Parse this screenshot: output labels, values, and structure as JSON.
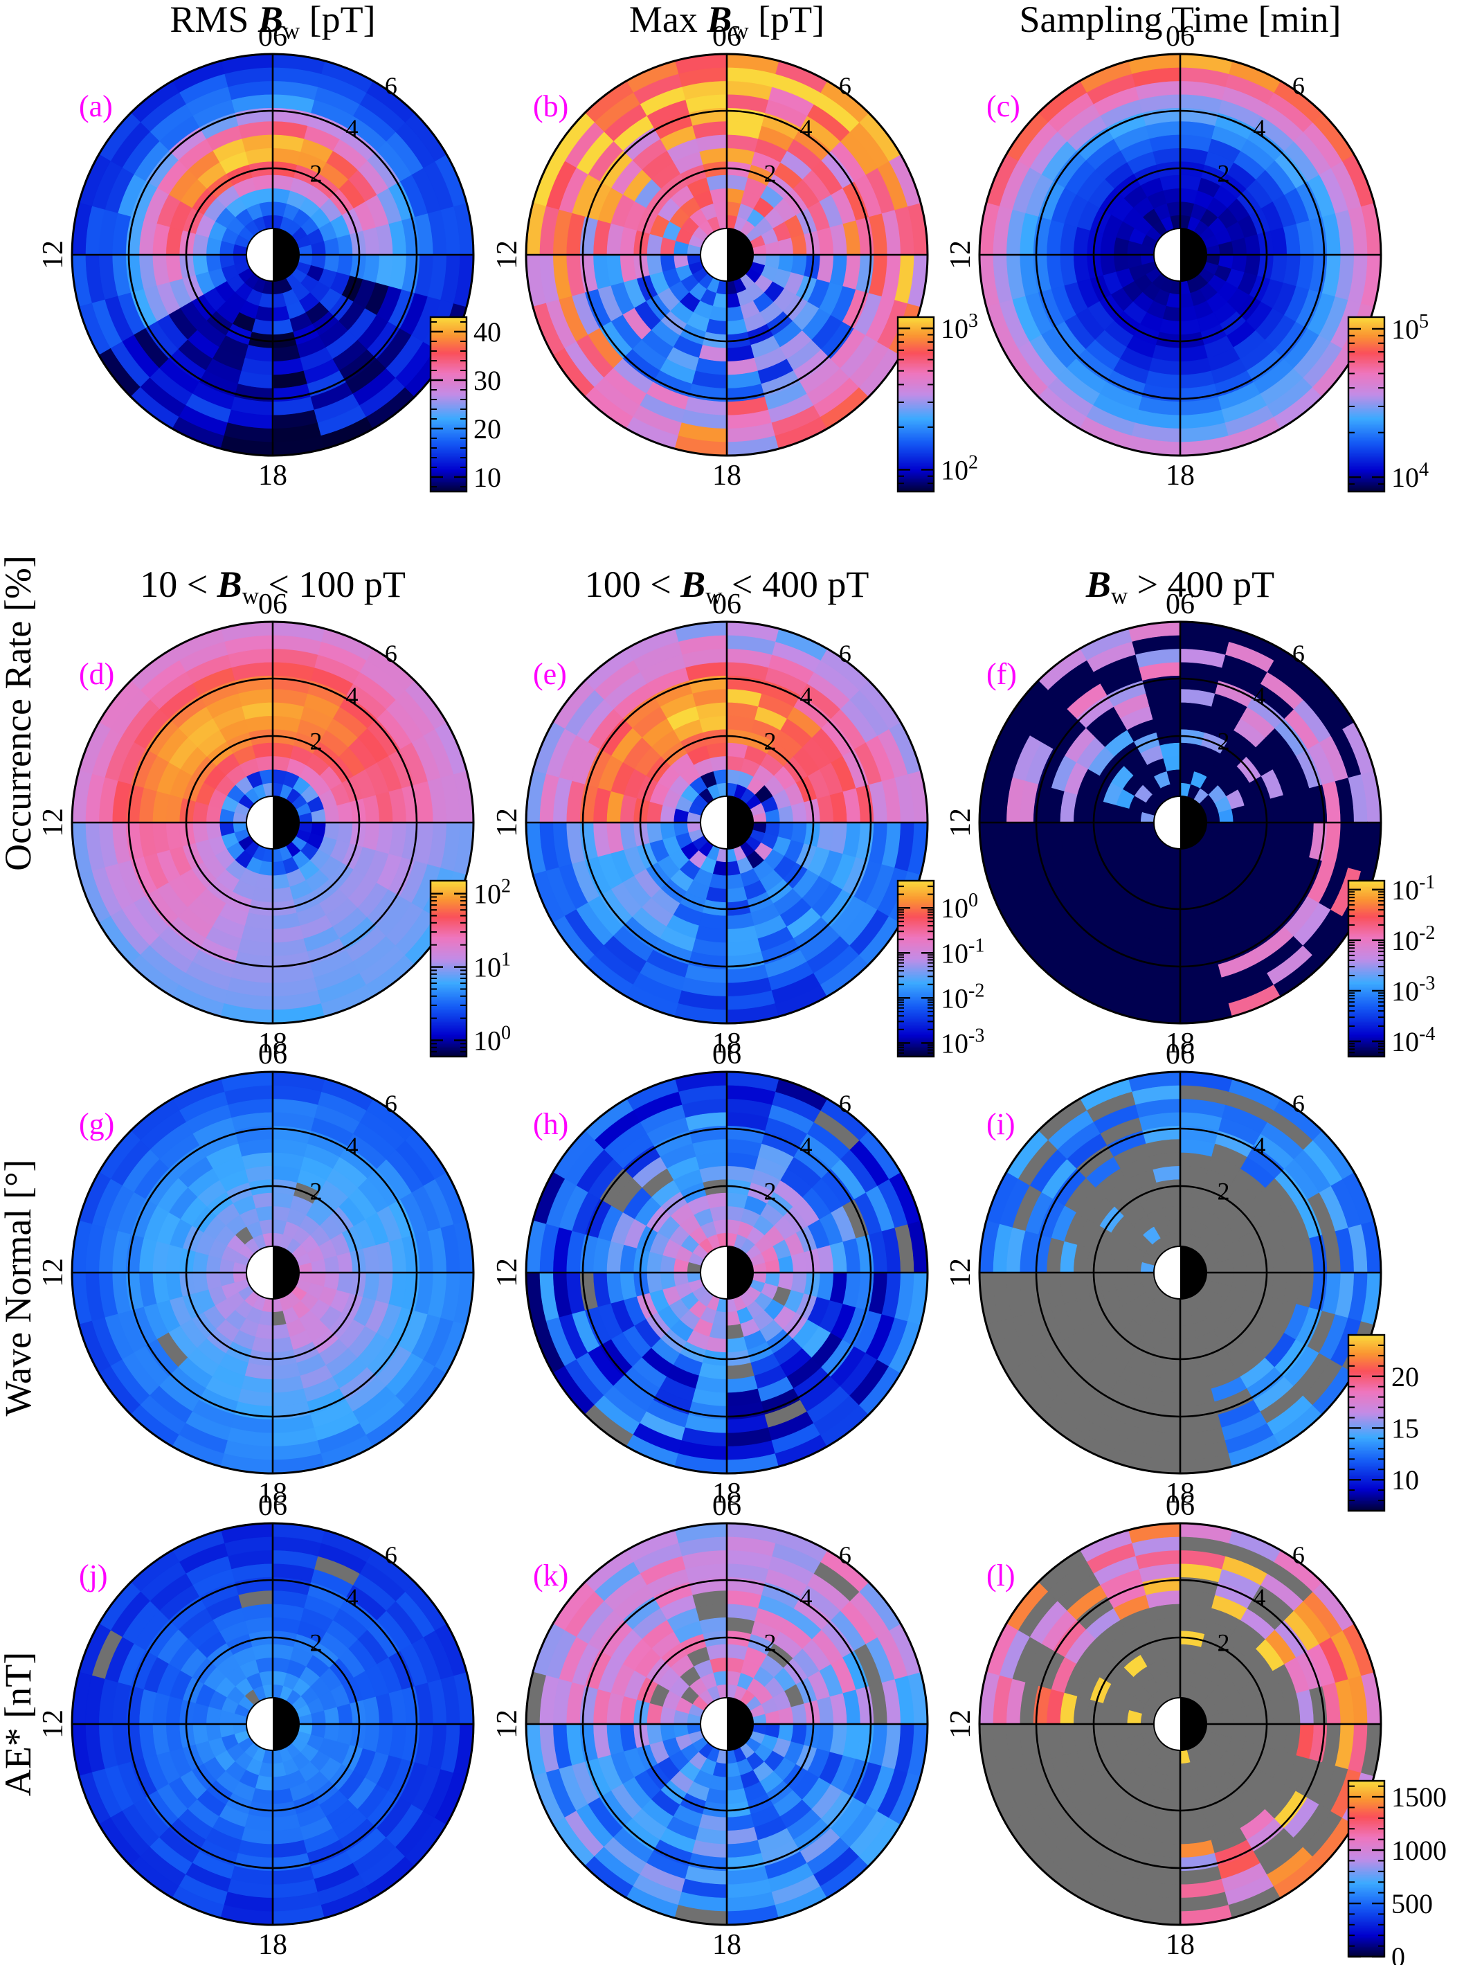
{
  "figure": {
    "column_titles": [
      {
        "main": "RMS ",
        "bold": "B",
        "sub": "w",
        "rest": " [pT]"
      },
      {
        "main": "Max ",
        "bold": "B",
        "sub": "w",
        "rest": " [pT]"
      },
      {
        "main": "Sampling Time [min]",
        "bold": "",
        "sub": "",
        "rest": ""
      }
    ],
    "occurrence_titles": [
      {
        "main": "10 < ",
        "bold": "B",
        "sub": "w",
        "rest": " < 100 pT"
      },
      {
        "main": "100 < ",
        "bold": "B",
        "sub": "w",
        "rest": " < 400 pT"
      },
      {
        "main": "",
        "bold": "B",
        "sub": "w",
        "rest": " > 400 pT"
      }
    ],
    "row_labels": [
      "Occurrence Rate [%]",
      "Wave Normal [°]",
      "AE* [nT]"
    ],
    "mlt_labels": {
      "top": "06",
      "left": "12",
      "bottom": "18"
    },
    "l_labels": [
      "2",
      "4",
      "6"
    ],
    "panel_labels": [
      "(a)",
      "(b)",
      "(c)",
      "(d)",
      "(e)",
      "(f)",
      "(g)",
      "(h)",
      "(i)",
      "(j)",
      "(k)",
      "(l)"
    ],
    "colors": {
      "panel_label": "#ff00ff",
      "gray": "#707070",
      "frame": "#000000"
    }
  },
  "chart_data": [
    {
      "type": "heatmap",
      "panel": "(a)",
      "title": "RMS Bw [pT]",
      "quantity": "rms",
      "cbar": {
        "ticks": [
          "10",
          "20",
          "30",
          "40"
        ],
        "tick_values": [
          10,
          20,
          30,
          40
        ],
        "scale": "linear",
        "range": [
          7,
          43
        ]
      }
    },
    {
      "type": "heatmap",
      "panel": "(b)",
      "title": "Max Bw [pT]",
      "quantity": "max",
      "cbar": {
        "ticks": [
          "10^2",
          "10^3"
        ],
        "tick_values": [
          100,
          1000
        ],
        "scale": "log",
        "range": [
          70,
          1200
        ]
      }
    },
    {
      "type": "heatmap",
      "panel": "(c)",
      "title": "Sampling Time [min]",
      "quantity": "time",
      "cbar": {
        "ticks": [
          "10^4",
          "10^5"
        ],
        "tick_values": [
          10000,
          100000
        ],
        "scale": "log",
        "range": [
          8000,
          120000
        ]
      }
    },
    {
      "type": "heatmap",
      "panel": "(d)",
      "title": "10 < Bw < 100 pT",
      "quantity": "occ_low",
      "cbar": {
        "ticks": [
          "10^0",
          "10^1",
          "10^2"
        ],
        "tick_values": [
          1,
          10,
          100
        ],
        "scale": "log",
        "range": [
          0.6,
          150
        ]
      }
    },
    {
      "type": "heatmap",
      "panel": "(e)",
      "title": "100 < Bw < 400 pT",
      "quantity": "occ_mid",
      "cbar": {
        "ticks": [
          "10^-3",
          "10^-2",
          "10^-1",
          "10^0"
        ],
        "tick_values": [
          0.001,
          0.01,
          0.1,
          1
        ],
        "scale": "log",
        "range": [
          0.0005,
          4
        ]
      }
    },
    {
      "type": "heatmap",
      "panel": "(f)",
      "title": "Bw > 400 pT",
      "quantity": "occ_high",
      "cbar": {
        "ticks": [
          "10^-4",
          "10^-3",
          "10^-2",
          "10^-1"
        ],
        "tick_values": [
          0.0001,
          0.001,
          0.01,
          0.1
        ],
        "scale": "log",
        "range": [
          5e-05,
          0.15
        ]
      }
    },
    {
      "type": "heatmap",
      "panel": "(g)",
      "title": "Wave Normal [°]",
      "quantity": "wna_low",
      "cbar": null
    },
    {
      "type": "heatmap",
      "panel": "(h)",
      "title": "Wave Normal [°]",
      "quantity": "wna_mid",
      "cbar": null
    },
    {
      "type": "heatmap",
      "panel": "(i)",
      "title": "Wave Normal [°]",
      "quantity": "wna_high",
      "cbar": {
        "ticks": [
          "10",
          "15",
          "20"
        ],
        "tick_values": [
          10,
          15,
          20
        ],
        "scale": "linear",
        "range": [
          7,
          24
        ]
      }
    },
    {
      "type": "heatmap",
      "panel": "(j)",
      "title": "AE* [nT]",
      "quantity": "ae_low",
      "cbar": null
    },
    {
      "type": "heatmap",
      "panel": "(k)",
      "title": "AE* [nT]",
      "quantity": "ae_mid",
      "cbar": null
    },
    {
      "type": "heatmap",
      "panel": "(l)",
      "title": "AE* [nT]",
      "quantity": "ae_high",
      "cbar": {
        "ticks": [
          "0",
          "500",
          "1000",
          "1500"
        ],
        "tick_values": [
          0,
          500,
          1000,
          1500
        ],
        "scale": "linear",
        "range": [
          0,
          1650
        ]
      }
    }
  ]
}
